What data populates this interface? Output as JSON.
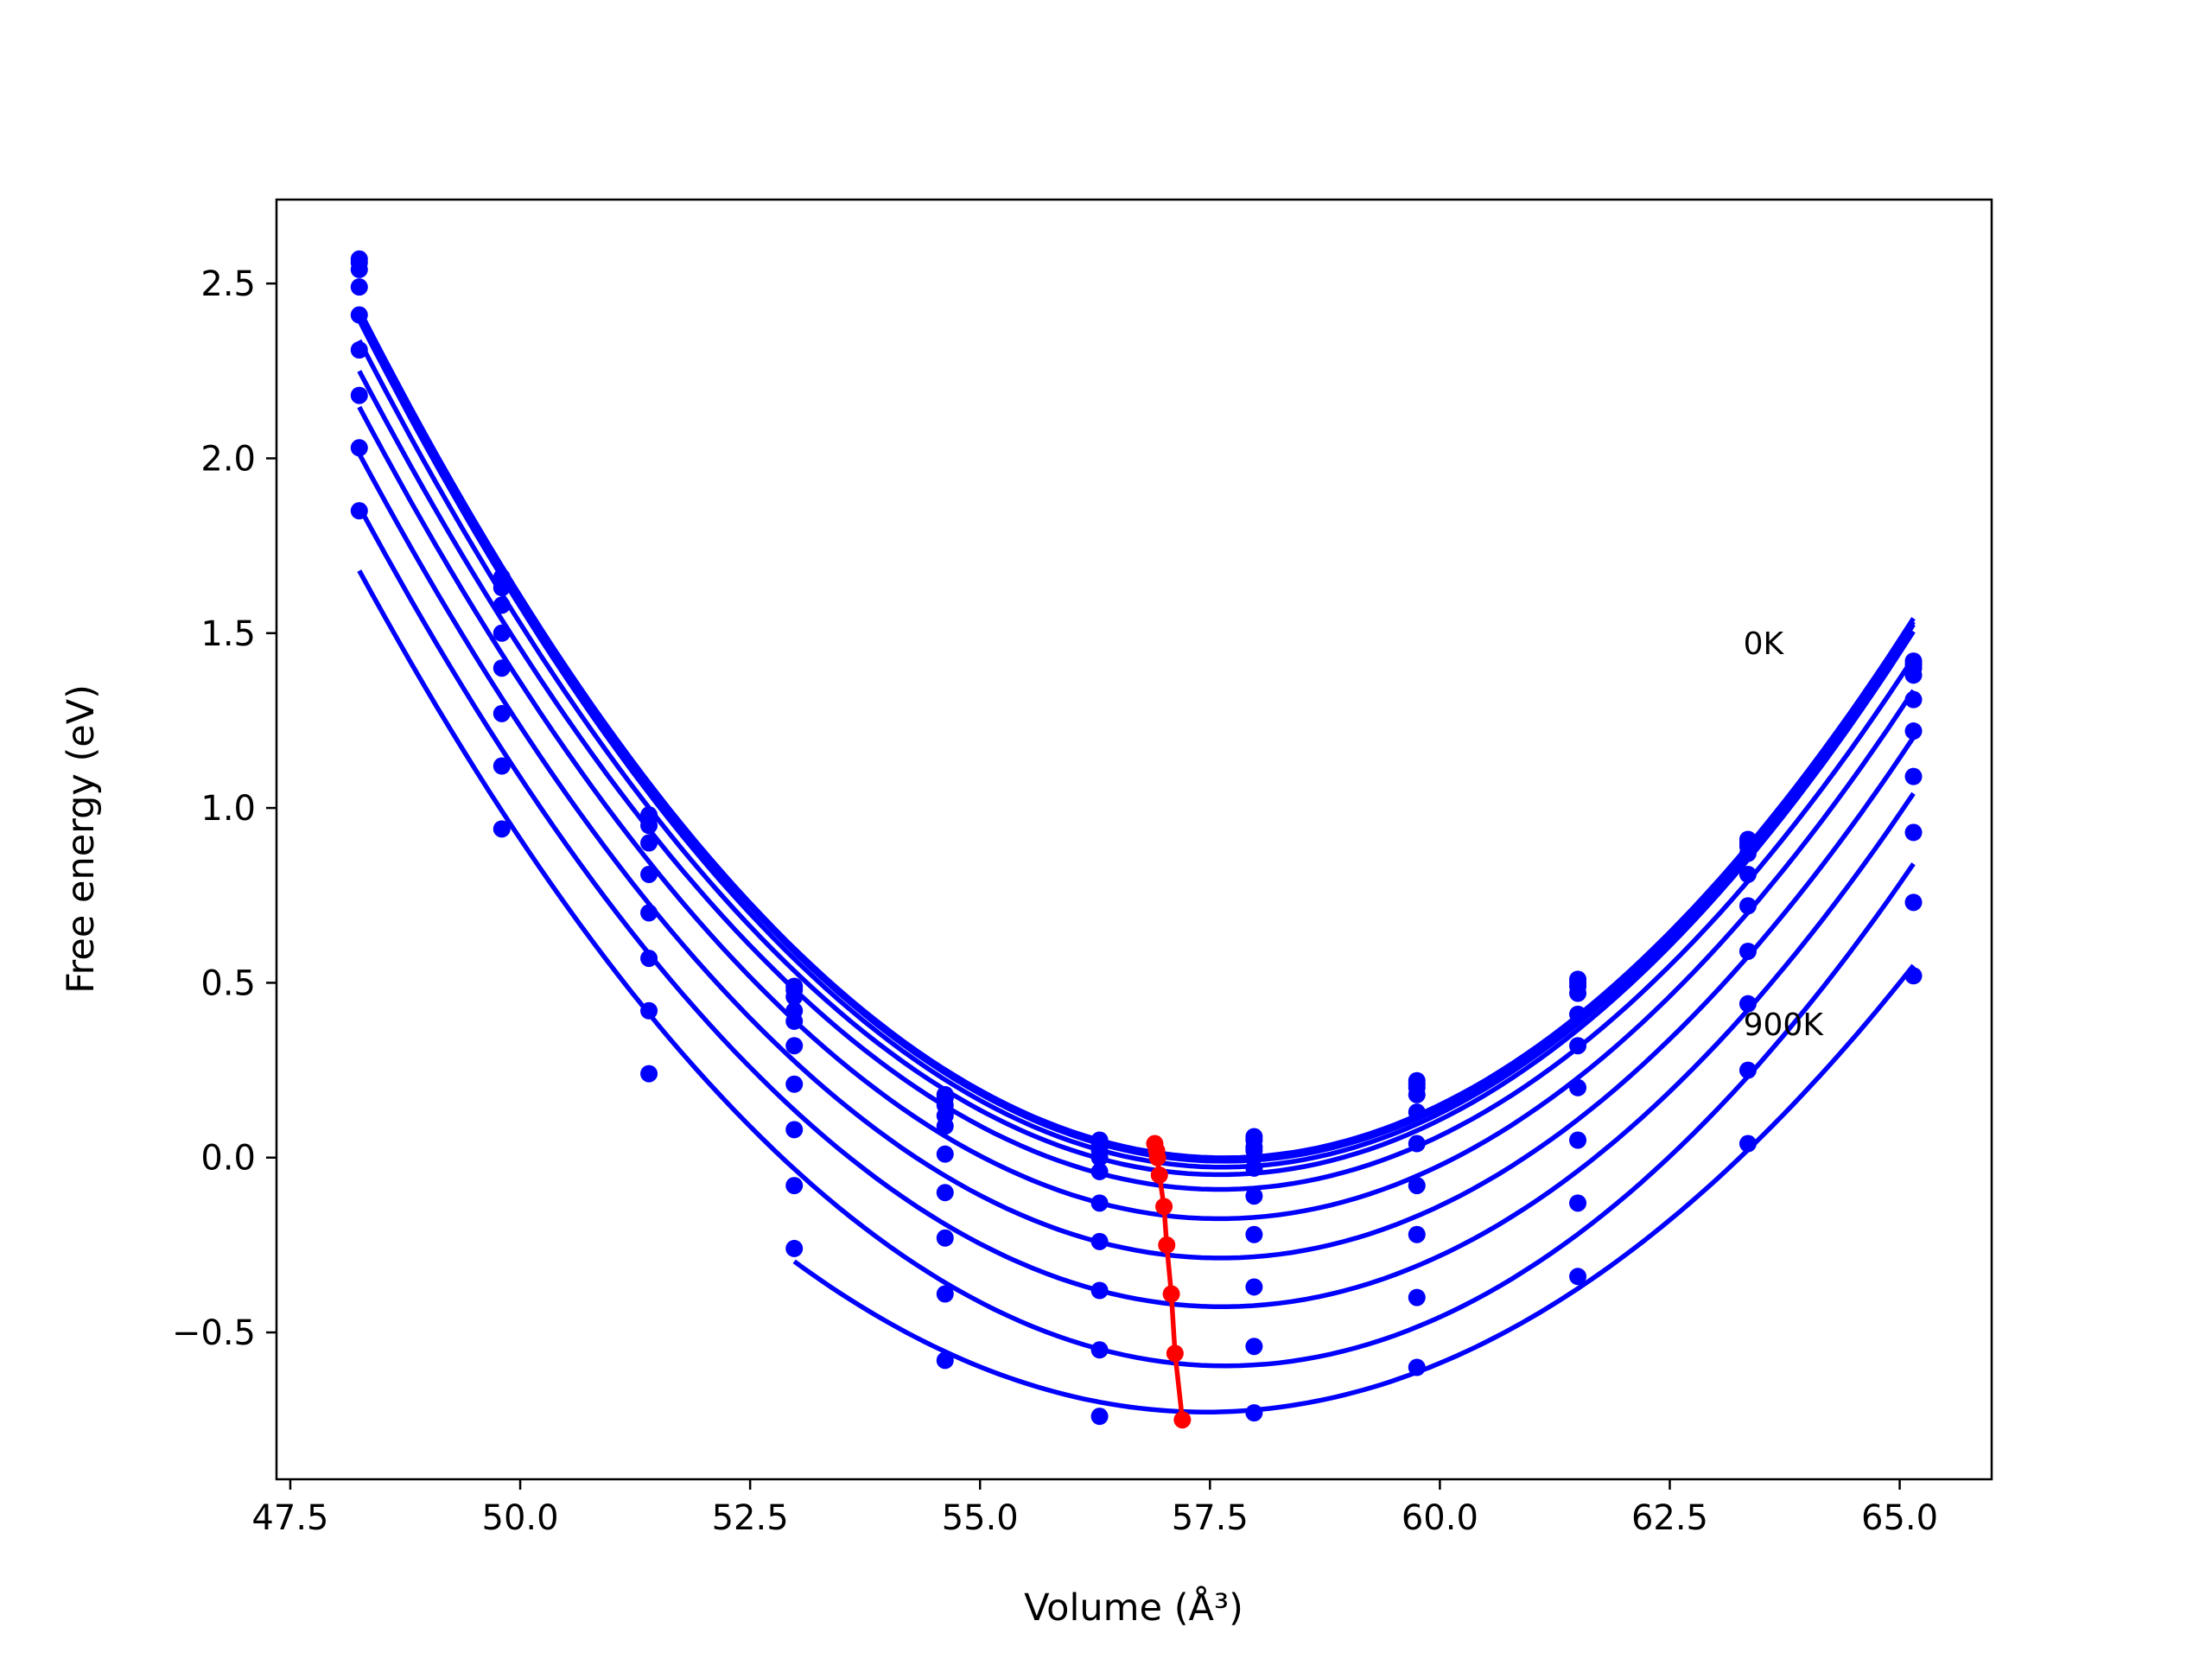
{
  "chart_data": {
    "type": "line",
    "xlabel": "Volume (Å³)",
    "ylabel": "Free energy (eV)",
    "xlim": [
      47.35,
      66.0
    ],
    "ylim": [
      -0.92,
      2.74
    ],
    "x_ticks": [
      "47.5",
      "50.0",
      "52.5",
      "55.0",
      "57.5",
      "60.0",
      "62.5",
      "65.0"
    ],
    "y_ticks": [
      "−0.5",
      "0.0",
      "0.5",
      "1.0",
      "1.5",
      "2.0",
      "2.5"
    ],
    "grid": false,
    "annotations": [
      {
        "text": "0K",
        "x": 63.3,
        "y": 1.47
      },
      {
        "text": "900K",
        "x": 63.3,
        "y": 0.38
      }
    ],
    "colors": {
      "isotherms": "#0000ff",
      "minima": "#ff0000"
    },
    "x": [
      48.25,
      49.8,
      51.4,
      52.98,
      54.62,
      56.3,
      57.98,
      59.75,
      61.5,
      63.35,
      65.15
    ],
    "series": [
      {
        "values": [
          2.57,
          1.66,
          0.98,
          0.49,
          0.18,
          0.05,
          0.06,
          0.22,
          0.51,
          0.91,
          1.42
        ]
      },
      {
        "values": [
          2.56,
          1.65,
          0.97,
          0.48,
          0.17,
          0.04,
          0.05,
          0.21,
          0.5,
          0.9,
          1.41
        ]
      },
      {
        "values": [
          2.54,
          1.63,
          0.95,
          0.46,
          0.15,
          0.02,
          0.03,
          0.2,
          0.49,
          0.89,
          1.4
        ]
      },
      {
        "values": [
          2.49,
          1.58,
          0.9,
          0.42,
          0.12,
          0.0,
          0.02,
          0.18,
          0.47,
          0.87,
          1.38
        ]
      },
      {
        "values": [
          2.41,
          1.5,
          0.81,
          0.39,
          0.09,
          -0.04,
          -0.03,
          0.13,
          0.41,
          0.81,
          1.31
        ]
      },
      {
        "values": [
          2.31,
          1.4,
          0.7,
          0.32,
          0.01,
          -0.13,
          -0.11,
          0.04,
          0.32,
          0.72,
          1.22
        ]
      },
      {
        "values": [
          2.18,
          1.27,
          0.57,
          0.21,
          -0.1,
          -0.24,
          -0.22,
          -0.08,
          0.2,
          0.59,
          1.09
        ]
      },
      {
        "values": [
          2.03,
          1.12,
          0.42,
          0.08,
          -0.23,
          -0.38,
          -0.37,
          -0.22,
          0.05,
          0.44,
          0.93
        ]
      },
      {
        "values": [
          1.85,
          0.94,
          0.24,
          -0.08,
          -0.39,
          -0.55,
          -0.54,
          -0.4,
          -0.13,
          0.25,
          0.73
        ]
      },
      {
        "values": [
          null,
          null,
          null,
          -0.26,
          -0.58,
          -0.74,
          -0.73,
          -0.6,
          -0.34,
          0.04,
          0.52
        ]
      }
    ],
    "minima": {
      "x": [
        56.9,
        56.92,
        56.93,
        56.95,
        57.0,
        57.03,
        57.08,
        57.12,
        57.2
      ],
      "y": [
        0.04,
        0.02,
        0.0,
        -0.05,
        -0.14,
        -0.25,
        -0.39,
        -0.56,
        -0.75
      ]
    }
  }
}
